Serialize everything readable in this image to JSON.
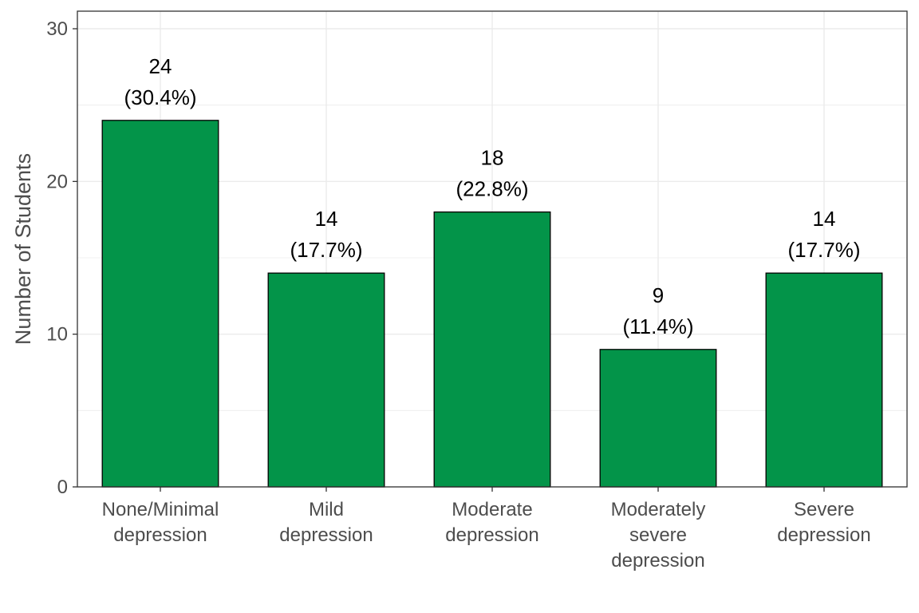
{
  "chart_data": {
    "type": "bar",
    "title": "",
    "xlabel": "",
    "ylabel": "Number of Students",
    "ylim": [
      0,
      30
    ],
    "yticks": [
      0,
      10,
      20,
      30
    ],
    "grid": true,
    "bar_color": "#039449",
    "categories": [
      [
        "None/Minimal",
        "depression"
      ],
      [
        "Mild",
        "depression"
      ],
      [
        "Moderate",
        "depression"
      ],
      [
        "Moderately",
        "severe",
        "depression"
      ],
      [
        "Severe",
        "depression"
      ]
    ],
    "values": [
      24,
      14,
      18,
      9,
      14
    ],
    "data_labels": [
      [
        "24",
        "(30.4%)"
      ],
      [
        "14",
        "(17.7%)"
      ],
      [
        "18",
        "(22.8%)"
      ],
      [
        "9",
        "(11.4%)"
      ],
      [
        "14",
        "(17.7%)"
      ]
    ]
  }
}
